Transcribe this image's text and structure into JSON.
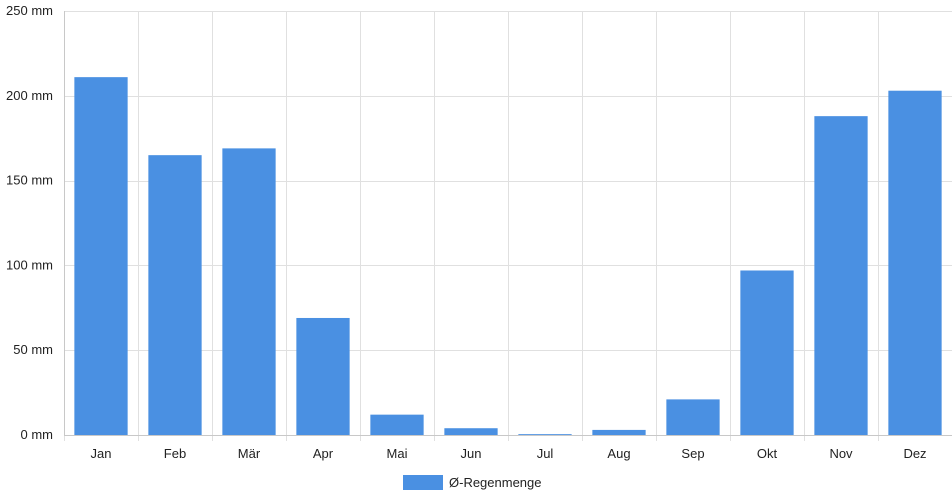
{
  "chart_data": {
    "type": "bar",
    "categories": [
      "Jan",
      "Feb",
      "Mär",
      "Apr",
      "Mai",
      "Jun",
      "Jul",
      "Aug",
      "Sep",
      "Okt",
      "Nov",
      "Dez"
    ],
    "series": [
      {
        "name": "Ø-Regenmenge",
        "values": [
          211,
          165,
          169,
          69,
          12,
          4,
          0.5,
          3,
          21,
          97,
          188,
          203
        ],
        "color": "#4a90e2"
      }
    ],
    "ylim": [
      0,
      250
    ],
    "yticks": [
      0,
      50,
      100,
      150,
      200,
      250
    ],
    "ytick_suffix": " mm",
    "grid": true,
    "legend_position": "bottom-center"
  }
}
